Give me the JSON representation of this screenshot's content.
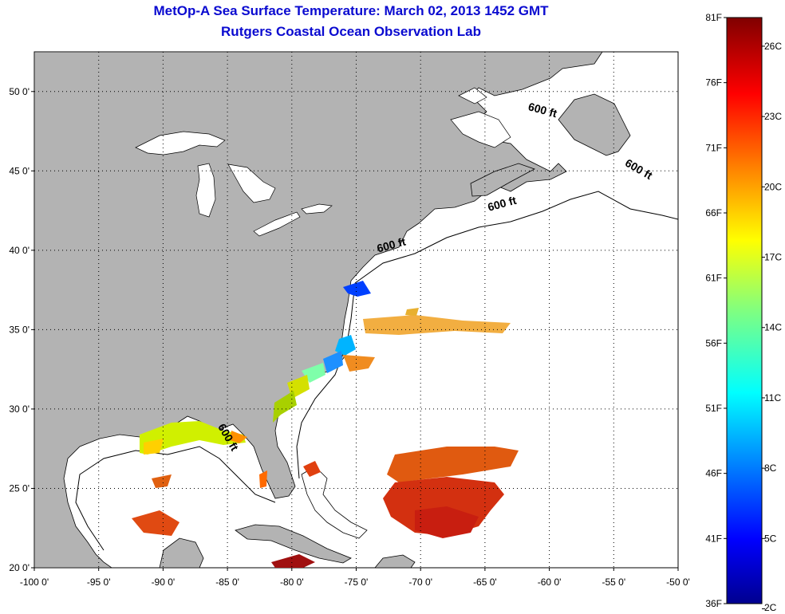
{
  "title": {
    "line1": "MetOp-A Sea Surface Temperature:  March 02, 2013 1452 GMT",
    "line2": "Rutgers Coastal Ocean Observation Lab"
  },
  "map": {
    "lon_range": [
      -100,
      -50
    ],
    "lat_range": [
      20,
      52.5
    ],
    "lon_ticks": [
      {
        "value": -100,
        "label": "-100 0'"
      },
      {
        "value": -95,
        "label": "-95 0'"
      },
      {
        "value": -90,
        "label": "-90 0'"
      },
      {
        "value": -85,
        "label": "-85 0'"
      },
      {
        "value": -80,
        "label": "-80 0'"
      },
      {
        "value": -75,
        "label": "-75 0'"
      },
      {
        "value": -70,
        "label": "-70 0'"
      },
      {
        "value": -65,
        "label": "-65 0'"
      },
      {
        "value": -60,
        "label": "-60 0'"
      },
      {
        "value": -55,
        "label": "-55 0'"
      },
      {
        "value": -50,
        "label": "-50 0'"
      }
    ],
    "lat_ticks": [
      {
        "value": 20,
        "label": "20 0'"
      },
      {
        "value": 25,
        "label": "25 0'"
      },
      {
        "value": 30,
        "label": "30 0'"
      },
      {
        "value": 35,
        "label": "35 0'"
      },
      {
        "value": 40,
        "label": "40 0'"
      },
      {
        "value": 45,
        "label": "45 0'"
      },
      {
        "value": 50,
        "label": "50 0'"
      }
    ],
    "land_color": "#b3b3b3",
    "ocean_color": "#ffffff",
    "grid": "dotted",
    "isobath_labels": [
      {
        "text": "600 ft",
        "lon": -60.6,
        "lat": 48.6,
        "angle": 15
      },
      {
        "text": "600 ft",
        "lon": -53.2,
        "lat": 44.9,
        "angle": 30
      },
      {
        "text": "600 ft",
        "lon": -63.6,
        "lat": 42.7,
        "angle": -15
      },
      {
        "text": "600 ft",
        "lon": -72.2,
        "lat": 40.1,
        "angle": -15
      },
      {
        "text": "600 ft",
        "lon": -85.2,
        "lat": 28.1,
        "angle": 60
      }
    ]
  },
  "colorbar": {
    "min_f": 36,
    "max_f": 81,
    "min_c": 2,
    "max_c": 27,
    "f_labels": [
      "81F",
      "76F",
      "71F",
      "66F",
      "61F",
      "56F",
      "51F",
      "46F",
      "41F",
      "36F"
    ],
    "c_labels": [
      "26C",
      "23C",
      "20C",
      "17C",
      "14C",
      "11C",
      "8C",
      "5C",
      "2C"
    ],
    "c_values": [
      26,
      23,
      20,
      17,
      14,
      11,
      8,
      5,
      2
    ],
    "colormap": "jet",
    "colors": [
      "#00008f",
      "#0000ff",
      "#0080ff",
      "#00ffff",
      "#80ff80",
      "#ffff00",
      "#ff8000",
      "#ff0000",
      "#800000"
    ]
  }
}
